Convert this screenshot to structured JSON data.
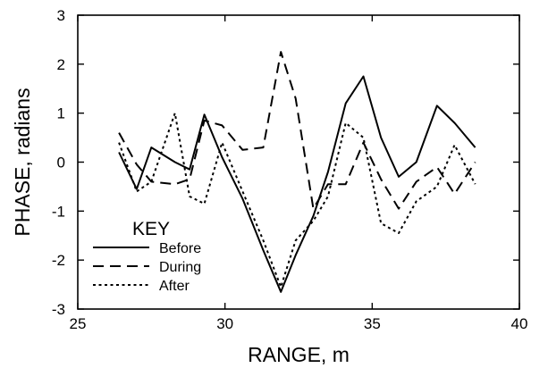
{
  "chart_data": {
    "type": "line",
    "title": "",
    "xlabel": "RANGE, m",
    "ylabel": "PHASE, radians",
    "xlim": [
      25,
      40
    ],
    "ylim": [
      -3,
      3
    ],
    "xticks": [
      25,
      30,
      35,
      40
    ],
    "yticks": [
      -3,
      -2,
      -1,
      0,
      1,
      2,
      3
    ],
    "grid": false,
    "legend": {
      "title": "KEY",
      "placement": "bottom-left"
    },
    "series": [
      {
        "name": "Before",
        "style": "solid",
        "x": [
          26.4,
          27.0,
          27.5,
          28.3,
          28.8,
          29.3,
          29.9,
          30.6,
          31.3,
          31.9,
          32.4,
          33.0,
          33.5,
          34.1,
          34.7,
          35.3,
          35.9,
          36.5,
          37.2,
          37.8,
          38.5
        ],
        "y": [
          0.2,
          -0.55,
          0.3,
          0.0,
          -0.15,
          0.97,
          0.1,
          -0.75,
          -1.8,
          -2.65,
          -1.9,
          -1.1,
          -0.2,
          1.2,
          1.75,
          0.5,
          -0.3,
          0.0,
          1.15,
          0.8,
          0.3
        ]
      },
      {
        "name": "During",
        "style": "dashed",
        "x": [
          26.4,
          27.0,
          27.5,
          28.3,
          28.8,
          29.3,
          29.9,
          30.6,
          31.3,
          31.9,
          32.4,
          33.0,
          33.5,
          34.1,
          34.7,
          35.3,
          35.9,
          36.5,
          37.2,
          37.8,
          38.5
        ],
        "y": [
          0.6,
          -0.05,
          -0.4,
          -0.45,
          -0.35,
          0.85,
          0.75,
          0.25,
          0.3,
          2.25,
          1.3,
          -0.95,
          -0.45,
          -0.45,
          0.4,
          -0.35,
          -0.95,
          -0.4,
          -0.1,
          -0.65,
          0.0
        ]
      },
      {
        "name": "After",
        "style": "dotted",
        "x": [
          26.4,
          27.0,
          27.5,
          28.3,
          28.8,
          29.3,
          29.9,
          30.6,
          31.3,
          31.9,
          32.4,
          33.0,
          33.5,
          34.1,
          34.7,
          35.3,
          35.9,
          36.5,
          37.2,
          37.8,
          38.5
        ],
        "y": [
          0.4,
          -0.6,
          -0.4,
          1.0,
          -0.7,
          -0.85,
          0.4,
          -0.6,
          -1.6,
          -2.55,
          -1.6,
          -1.2,
          -0.7,
          0.8,
          0.5,
          -1.25,
          -1.45,
          -0.8,
          -0.5,
          0.35,
          -0.45
        ]
      }
    ]
  }
}
